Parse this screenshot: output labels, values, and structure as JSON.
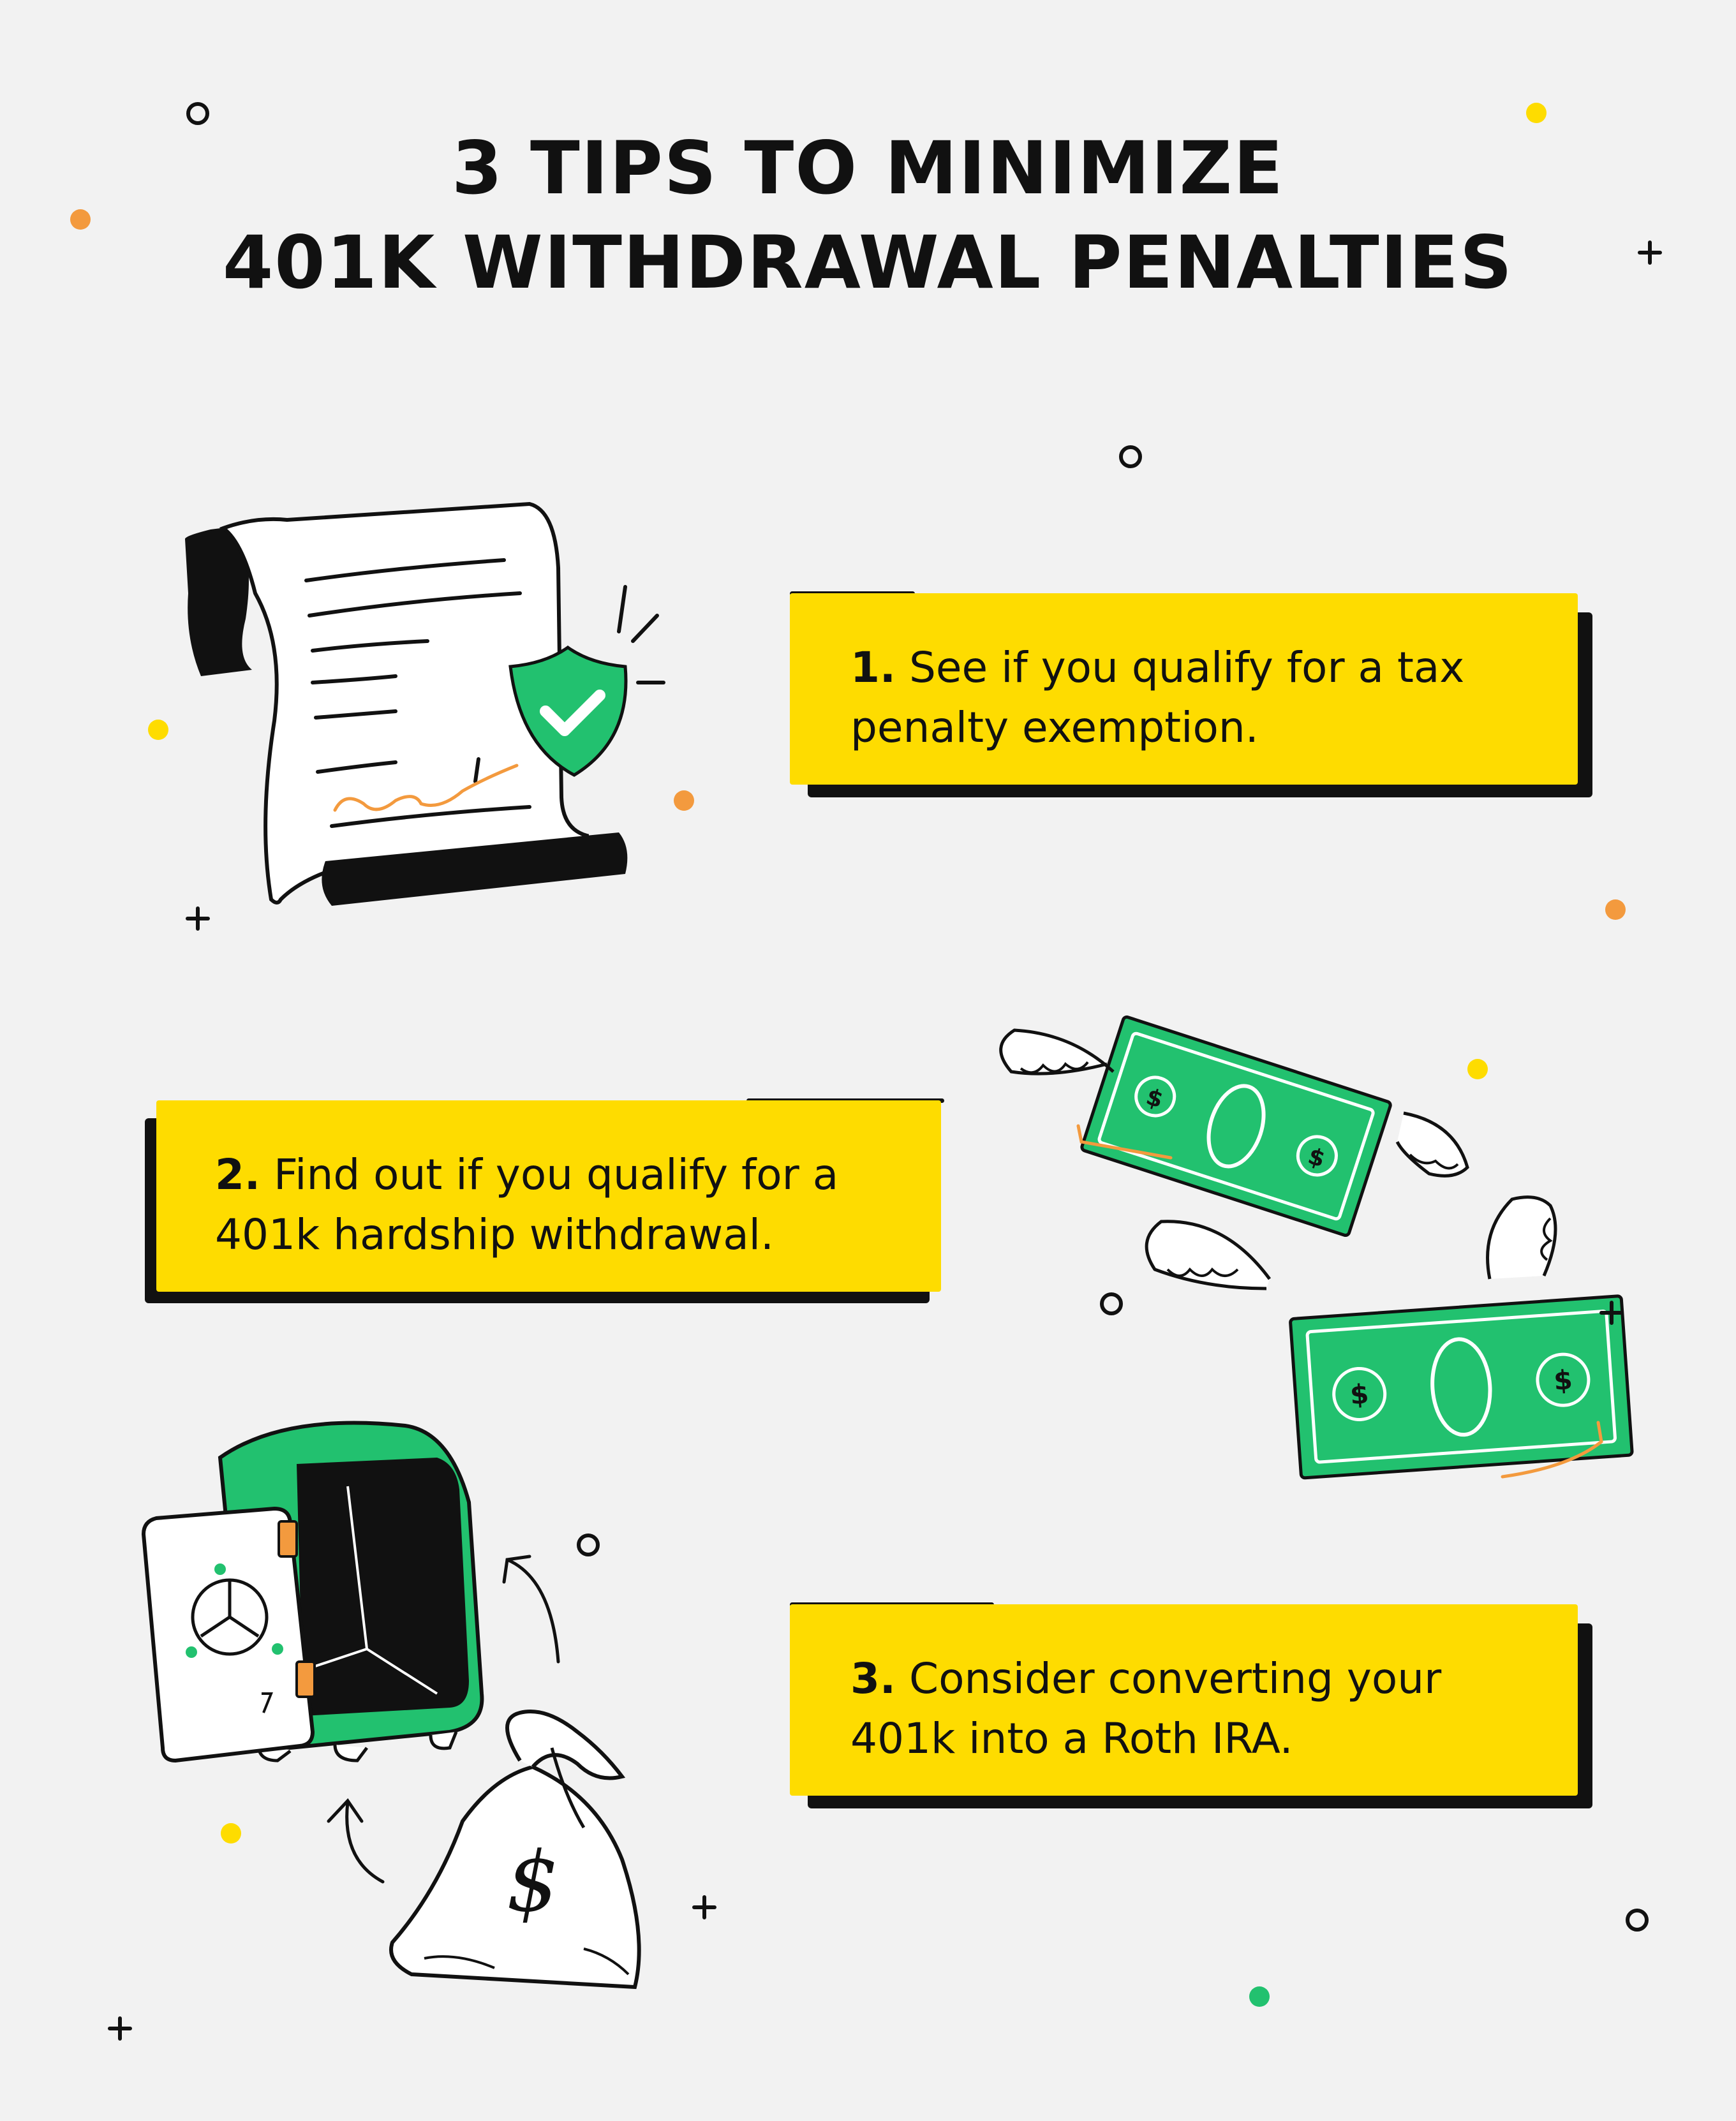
{
  "title": {
    "line1": "3 TIPS TO MINIMIZE",
    "line2": "401K WITHDRAWAL PENALTIES"
  },
  "tips": [
    {
      "number": "1.",
      "text_line1": "See if you qualify for a tax",
      "text_line2": "penalty exemption."
    },
    {
      "number": "2.",
      "text_line1": "Find out if you qualify for a",
      "text_line2": "401k hardship withdrawal."
    },
    {
      "number": "3.",
      "text_line1": "Consider converting your",
      "text_line2": "401k into a Roth IRA."
    }
  ],
  "illustrations": {
    "document": "signed-document-with-shield-icon",
    "money": "flying-dollar-bills-icon",
    "safe": "open-safe-and-money-bag-icon"
  },
  "colors": {
    "background": "#f2f2f2",
    "yellow": "#fedc00",
    "green": "#22c16f",
    "orange": "#f39a3e",
    "black": "#111111"
  }
}
